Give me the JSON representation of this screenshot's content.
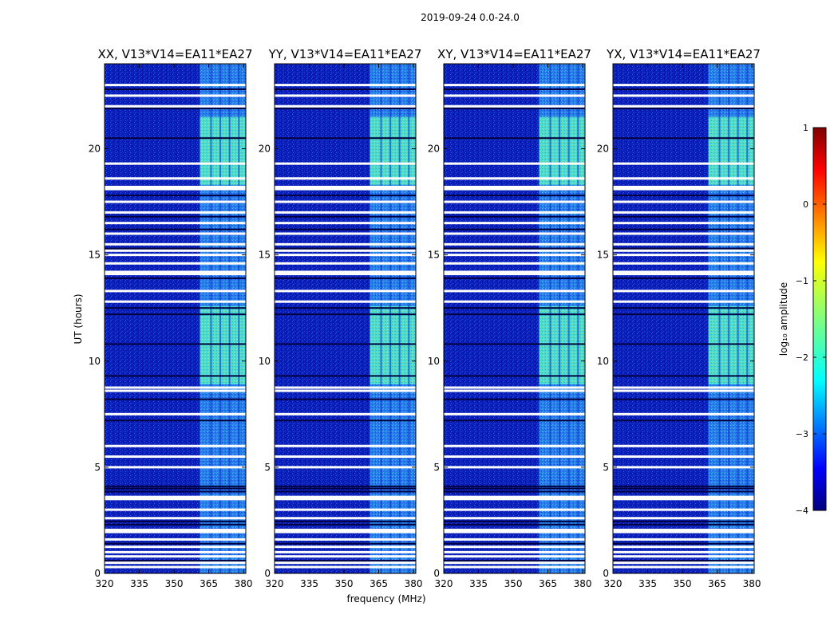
{
  "figure_title": "2019-09-24 0.0-24.0",
  "chart_data": {
    "type": "heatmap",
    "title": "2019-09-24 0.0-24.0",
    "xlabel": "frequency (MHz)",
    "ylabel": "UT (hours)",
    "xlim": [
      320,
      381
    ],
    "ylim": [
      0,
      24
    ],
    "xticks": [
      320,
      335,
      350,
      365,
      380
    ],
    "yticks": [
      0,
      5,
      10,
      15,
      20
    ],
    "panels": [
      {
        "title": "XX, V13*V14=EA11*EA27"
      },
      {
        "title": "YY, V13*V14=EA11*EA27"
      },
      {
        "title": "XY, V13*V14=EA11*EA27"
      },
      {
        "title": "YX, V13*V14=EA11*EA27"
      }
    ],
    "rfi_band_mhz": [
      361,
      381
    ],
    "rfi_channels_mhz": [
      361,
      366,
      370,
      374,
      378
    ],
    "strong_rfi_hours": [
      [
        8.9,
        12.6
      ],
      [
        18.3,
        21.5
      ]
    ],
    "flagged_hours": [
      0.3,
      0.5,
      0.8,
      1.0,
      1.25,
      1.6,
      1.95,
      2.05,
      2.6,
      3.0,
      3.5,
      3.6,
      5.0,
      5.5,
      6.0,
      7.5,
      8.6,
      8.75,
      12.8,
      13.3,
      14.1,
      14.2,
      14.6,
      15.0,
      15.2,
      15.5,
      16.0,
      16.5,
      17.0,
      17.5,
      18.1,
      18.2,
      18.6,
      19.3,
      22.0,
      22.5,
      23.0
    ],
    "dark_hours": [
      0.6,
      1.4,
      2.3,
      2.45,
      3.85,
      4.0,
      4.1,
      7.2,
      8.2,
      9.3,
      10.8,
      12.2,
      12.5,
      13.9,
      15.3,
      16.2,
      16.8,
      17.8,
      20.5,
      21.9,
      22.8
    ],
    "colorbar": {
      "label": "log₁₀ amplitude",
      "range": [
        -4,
        1
      ],
      "ticks": [
        1,
        0,
        -1,
        -2,
        -3,
        -4
      ]
    }
  }
}
